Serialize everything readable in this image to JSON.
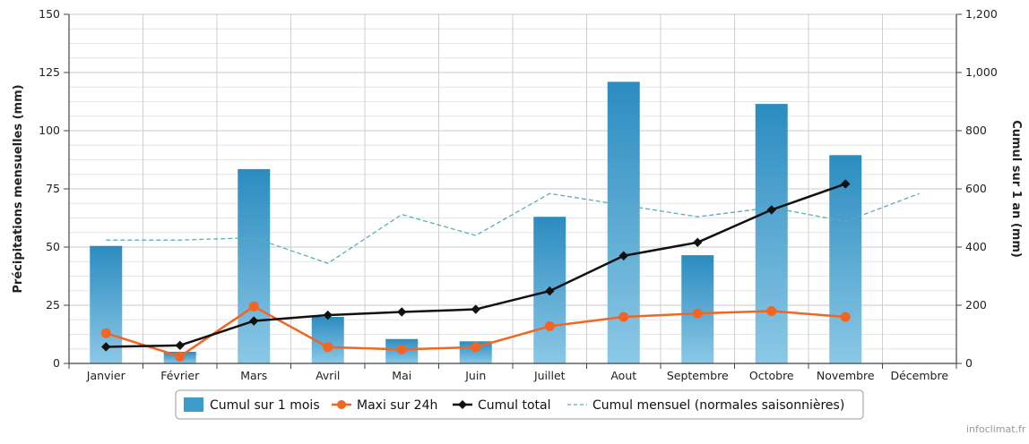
{
  "chart_data": {
    "type": "bar",
    "categories": [
      "Janvier",
      "Février",
      "Mars",
      "Avril",
      "Mai",
      "Juin",
      "Juillet",
      "Aout",
      "Septembre",
      "Octobre",
      "Novembre",
      "Décembre"
    ],
    "ylabel_left": "Précipitations mensuelles (mm)",
    "ylabel_right": "Cumul sur 1 an (mm)",
    "ylim_left": [
      0,
      150
    ],
    "ylim_right": [
      0,
      1200
    ],
    "yticks_left": [
      "0",
      "25",
      "50",
      "75",
      "100",
      "125",
      "150"
    ],
    "yticks_right": [
      "0",
      "200",
      "400",
      "600",
      "800",
      "1,000",
      "1,200"
    ],
    "grid": true,
    "legend_position": "bottom-center",
    "series": [
      {
        "name": "Cumul sur 1 mois",
        "kind": "bar",
        "axis": "left",
        "color": "#3d9cc9",
        "values": [
          50.5,
          5,
          83.5,
          20,
          10.5,
          9.5,
          63,
          121,
          46.5,
          111.5,
          89.5,
          null
        ]
      },
      {
        "name": "Maxi sur 24h",
        "kind": "line",
        "axis": "left",
        "color": "#f26522",
        "values": [
          13,
          3,
          24.5,
          7,
          6,
          7,
          16,
          20,
          21.5,
          22.5,
          20,
          null
        ]
      },
      {
        "name": "Cumul total",
        "kind": "line",
        "axis": "right",
        "color": "#111111",
        "values": [
          57,
          62,
          146,
          166,
          177,
          186,
          249,
          370,
          416,
          528,
          617,
          null
        ]
      },
      {
        "name": "Cumul mensuel (normales saisonnières)",
        "kind": "dashed-line",
        "axis": "left",
        "color": "#5aaeb8",
        "values": [
          53,
          53,
          54,
          43,
          64,
          55,
          73,
          68,
          63,
          67,
          61,
          73
        ]
      }
    ]
  },
  "credit": "infoclimat.fr"
}
